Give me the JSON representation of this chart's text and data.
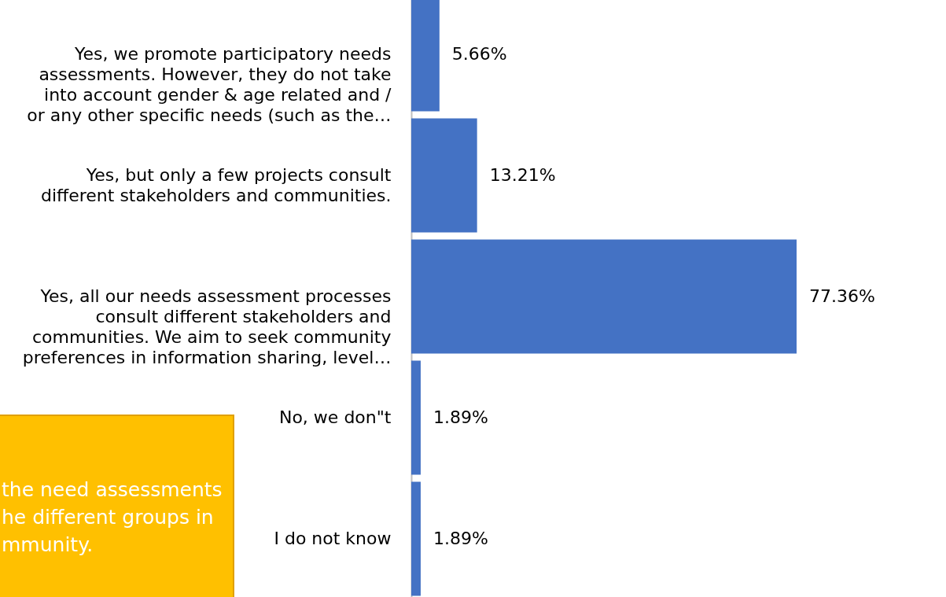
{
  "chart_data": {
    "type": "bar",
    "orientation": "horizontal",
    "categories": [
      "Yes, we promote participatory needs\nassessments. However, they do not take\ninto account gender & age related and /\nor any other specific needs (such as the…",
      "Yes, but only a few projects consult\ndifferent stakeholders and communities.",
      "Yes, all our needs assessment processes\nconsult different stakeholders and\ncommunities. We aim to seek community\npreferences in information sharing, level…",
      "No,  we don\"t",
      "I do not know"
    ],
    "values": [
      5.66,
      13.21,
      77.36,
      1.89,
      1.89
    ],
    "value_labels": [
      "5.66%",
      "13.21%",
      "77.36%",
      "1.89%",
      "1.89%"
    ],
    "color": "#4472c4",
    "annotations": [
      "the need assessments\nhe different groups in\nmmunity."
    ]
  }
}
